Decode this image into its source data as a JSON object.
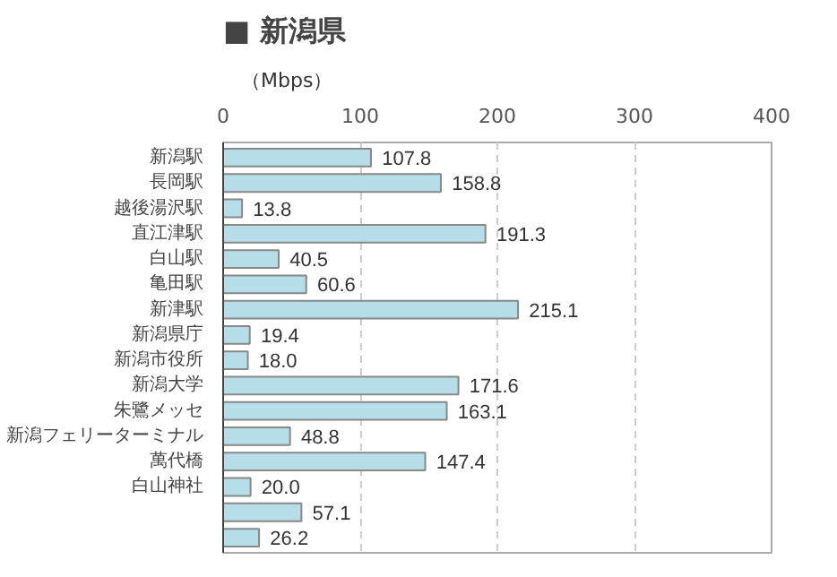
{
  "chart_data": {
    "type": "bar",
    "orientation": "horizontal",
    "title": "■ 新潟県",
    "xlabel": "（Mbps）",
    "categories": [
      "新潟駅",
      "長岡駅",
      "越後湯沢駅",
      "直江津駅",
      "白山駅",
      "亀田駅",
      "新津駅",
      "新潟県庁",
      "新潟市役所",
      "新潟大学",
      "朱鷺メッセ",
      "新潟フェリーターミナル",
      "萬代橋",
      "白山神社",
      null,
      null
    ],
    "values": [
      107.8,
      158.8,
      13.8,
      191.3,
      40.5,
      60.6,
      215.1,
      19.4,
      18.0,
      171.6,
      163.1,
      48.8,
      147.4,
      20.0,
      57.1,
      26.2
    ],
    "color": "#b7dde8",
    "xlim": [
      0,
      400
    ],
    "xticks": [
      0,
      100,
      200,
      300,
      400
    ],
    "grid": "x",
    "value_labels": [
      "107.8",
      "158.8",
      "13.8",
      "191.3",
      "40.5",
      "60.6",
      "215.1",
      "19.4",
      "18.0",
      "171.6",
      "163.1",
      "48.8",
      "147.4",
      "20.0",
      "57.1",
      "26.2"
    ]
  }
}
